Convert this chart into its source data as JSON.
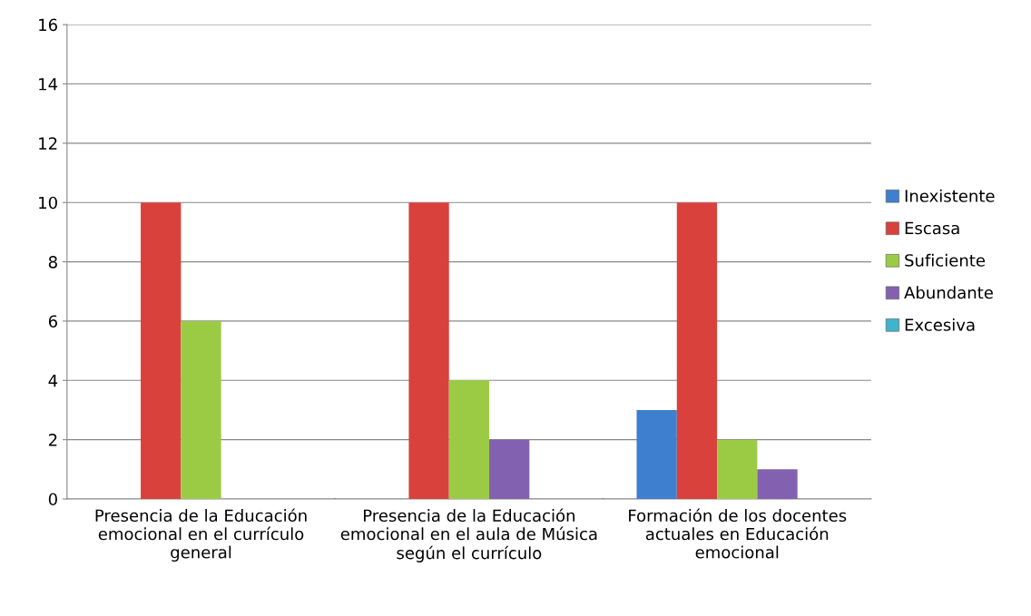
{
  "chart_data": {
    "type": "bar",
    "categories": [
      "Presencia de la Educación emocional en el currículo general",
      "Presencia de la Educación emocional en el aula de Música según el currículo",
      "Formación de los docentes actuales en Educación emocional"
    ],
    "series": [
      {
        "name": "Inexistente",
        "color": "#3f7fcf",
        "values": [
          0,
          0,
          3
        ]
      },
      {
        "name": "Escasa",
        "color": "#d9413d",
        "values": [
          10,
          10,
          10
        ]
      },
      {
        "name": "Suficiente",
        "color": "#9bcb45",
        "values": [
          6,
          4,
          2
        ]
      },
      {
        "name": "Abundante",
        "color": "#8262b0",
        "values": [
          0,
          2,
          1
        ]
      },
      {
        "name": "Excesiva",
        "color": "#3fb3cc",
        "values": [
          0,
          0,
          0
        ]
      }
    ],
    "ylim": [
      0,
      16
    ],
    "yticks": [
      0,
      2,
      4,
      6,
      8,
      10,
      12,
      14,
      16
    ],
    "grid": "y",
    "legend": "right"
  }
}
